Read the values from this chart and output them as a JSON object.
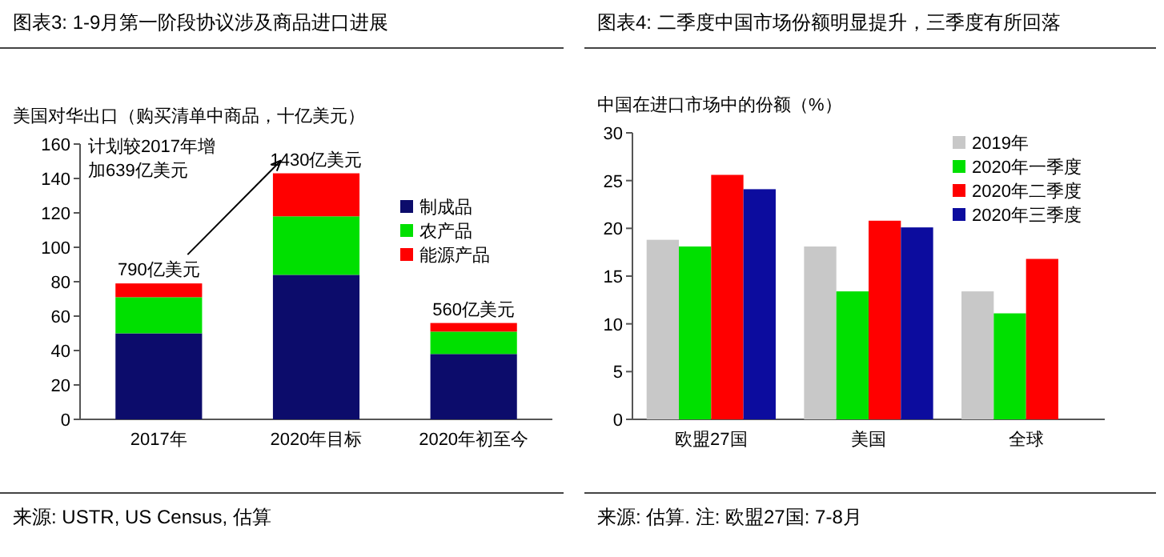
{
  "chart_data": [
    {
      "type": "bar",
      "title": "图表3: 1-9月第一阶段协议涉及商品进口进展",
      "ylabel": "美国对华出口（购买清单中商品，十亿美元）",
      "categories": [
        "2017年",
        "2020年目标",
        "2020年初至今"
      ],
      "stacked": true,
      "series": [
        {
          "name": "制成品",
          "color": "#0c0c6b",
          "values": [
            50,
            84,
            38
          ]
        },
        {
          "name": "农产品",
          "color": "#00e000",
          "values": [
            21,
            34,
            13
          ]
        },
        {
          "name": "能源产品",
          "color": "#ff0000",
          "values": [
            8,
            25,
            5
          ]
        }
      ],
      "ylim": [
        0,
        160
      ],
      "yticks": [
        0,
        20,
        40,
        60,
        80,
        100,
        120,
        140,
        160
      ],
      "grid": false,
      "legend": "right",
      "annotations": [
        "计划较2017年增加639亿美元",
        {
          "text": "790亿美元",
          "x": "2017年",
          "y": 79
        },
        {
          "text": "1430亿美元",
          "x": "2020年目标",
          "y": 143
        },
        {
          "text": "560亿美元",
          "x": "2020年初至今",
          "y": 56
        },
        "来源: USTR, US Census, 估算"
      ]
    },
    {
      "type": "bar",
      "title": "图表4: 二季度中国市场份额明显提升，三季度有所回落",
      "ylabel": "中国在进口市场中的份额（%）",
      "categories": [
        "欧盟27国",
        "美国",
        "全球"
      ],
      "series": [
        {
          "name": "2019年",
          "color": "#c8c8c8",
          "values": [
            18.8,
            18.1,
            13.4
          ]
        },
        {
          "name": "2020年一季度",
          "color": "#00e000",
          "values": [
            18.1,
            13.4,
            11.1
          ]
        },
        {
          "name": "2020年二季度",
          "color": "#ff0000",
          "values": [
            25.6,
            20.8,
            16.8
          ]
        },
        {
          "name": "2020年三季度",
          "color": "#0c0c9e",
          "values": [
            24.1,
            20.1,
            null
          ]
        }
      ],
      "ylim": [
        0,
        30
      ],
      "yticks": [
        0,
        5,
        10,
        15,
        20,
        25,
        30
      ],
      "grid": false,
      "legend": "top right",
      "annotations": [
        "来源: 估算. 注: 欧盟27国: 7-8月"
      ]
    }
  ]
}
